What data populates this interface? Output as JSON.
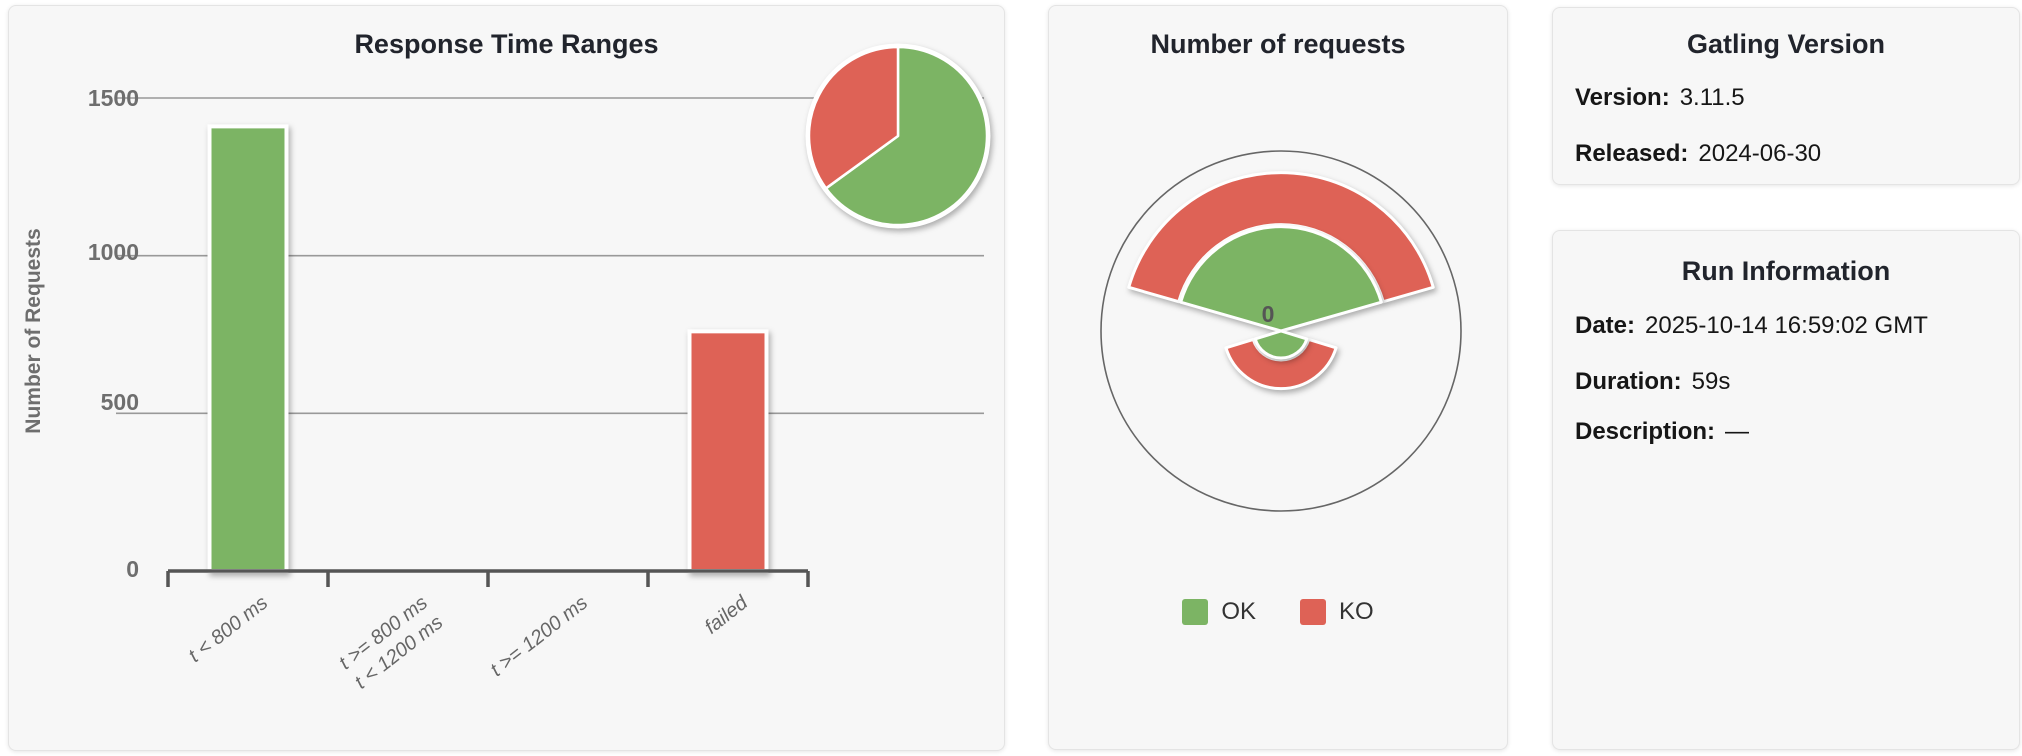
{
  "colors": {
    "ok": "#7CB464",
    "ko": "#DE6256",
    "grid": "#999999",
    "axis": "#555555",
    "tick_text": "#6E6E6E",
    "label_text": "#666666",
    "title_text": "#21242C",
    "card_bg": "#F7F7F7",
    "card_border": "#E4E4E4",
    "gauge_ring": "#666666"
  },
  "chart_data": [
    {
      "type": "bar",
      "title": "Response Time Ranges",
      "ylabel": "Number of Requests",
      "xlabel": "",
      "categories": [
        "t < 800 ms",
        "t >= 800 ms\nt < 1200 ms",
        "t >= 1200 ms",
        "failed"
      ],
      "values": [
        1410,
        0,
        0,
        760
      ],
      "bar_colors": [
        "#7CB464",
        "#7CB464",
        "#7CB464",
        "#DE6256"
      ],
      "ylim": [
        0,
        1500
      ],
      "yticks": [
        0,
        500,
        1000,
        1500
      ],
      "grid": true,
      "inset_pie": {
        "type": "pie",
        "position": "top-right",
        "labels": [
          "OK",
          "KO"
        ],
        "values_pct": [
          65,
          35
        ],
        "colors": [
          "#7CB464",
          "#DE6256"
        ]
      }
    },
    {
      "type": "polar",
      "title": "Number of requests",
      "radial_axis_label": "0",
      "legend": [
        {
          "label": "OK",
          "color": "#7CB464"
        },
        {
          "label": "KO",
          "color": "#DE6256"
        }
      ],
      "spokes": [
        {
          "direction": "up",
          "angle_span_deg": 148,
          "ok_frac": 0.58,
          "total_frac": 0.88
        },
        {
          "direction": "down",
          "angle_span_deg": 146,
          "ok_frac": 0.15,
          "total_frac": 0.32
        }
      ]
    }
  ],
  "version_panel": {
    "title": "Gatling Version",
    "fields": [
      {
        "label": "Version:",
        "value": "3.11.5"
      },
      {
        "label": "Released:",
        "value": "2024-06-30"
      }
    ]
  },
  "run_panel": {
    "title": "Run Information",
    "fields": [
      {
        "label": "Date:",
        "value": "2025-10-14 16:59:02 GMT"
      },
      {
        "label": "Duration:",
        "value": "59s"
      },
      {
        "label": "Description:",
        "value": "—"
      }
    ]
  }
}
